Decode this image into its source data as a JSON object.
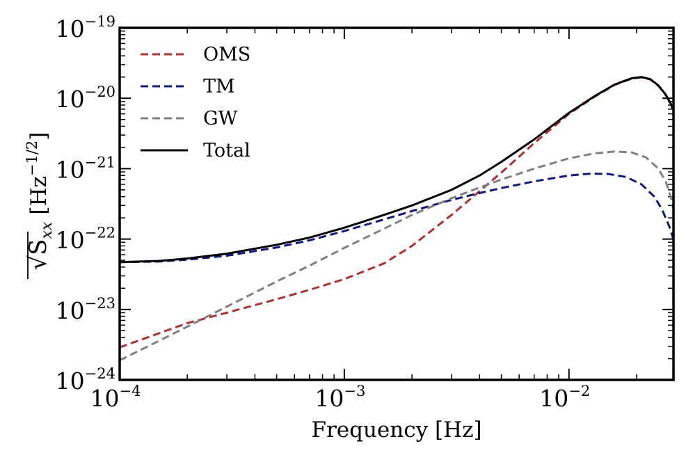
{
  "chart_data": {
    "type": "line",
    "xscale": "log",
    "yscale": "log",
    "xlim": [
      0.0001,
      0.0292
    ],
    "ylim": [
      1e-24,
      1e-19
    ],
    "xlabel": "Frequency [Hz]",
    "ylabel": {
      "base": "√S",
      "subscript": "xx",
      "unit_open": "[Hz",
      "unit_exponent": "−1/2",
      "unit_close": "]"
    },
    "x_ticks": [
      {
        "value": 0.0001,
        "base": "10",
        "exponent": "−4"
      },
      {
        "value": 0.001,
        "base": "10",
        "exponent": "−3"
      },
      {
        "value": 0.01,
        "base": "10",
        "exponent": "−2"
      }
    ],
    "y_ticks": [
      {
        "value": 1e-24,
        "base": "10",
        "exponent": "−24"
      },
      {
        "value": 1e-23,
        "base": "10",
        "exponent": "−23"
      },
      {
        "value": 1e-22,
        "base": "10",
        "exponent": "−22"
      },
      {
        "value": 1e-21,
        "base": "10",
        "exponent": "−21"
      },
      {
        "value": 1e-20,
        "base": "10",
        "exponent": "−20"
      },
      {
        "value": 1e-19,
        "base": "10",
        "exponent": "−19"
      }
    ],
    "legend_position": "top-left",
    "series": [
      {
        "name": "OMS",
        "color": "#b03030",
        "style": "dashed",
        "x": [
          0.0001,
          0.00015,
          0.0002,
          0.0003,
          0.0005,
          0.0007,
          0.001,
          0.0015,
          0.002,
          0.003,
          0.004,
          0.005,
          0.007,
          0.01,
          0.013,
          0.016,
          0.019,
          0.021,
          0.023,
          0.025,
          0.027,
          0.0285,
          0.029
        ],
        "y": [
          2.9e-24,
          4.6e-24,
          6.4e-24,
          9e-24,
          1.4e-23,
          1.9e-23,
          2.7e-23,
          4.5e-23,
          8e-23,
          2.2e-22,
          4.8e-22,
          8.8e-22,
          2.3e-21,
          6e-21,
          1.05e-20,
          1.55e-20,
          1.9e-20,
          1.98e-20,
          1.85e-20,
          1.5e-20,
          1.1e-20,
          8e-21,
          6.8e-21
        ]
      },
      {
        "name": "TM",
        "color": "#0d1a80",
        "style": "dashed",
        "x": [
          0.0001,
          0.00015,
          0.0002,
          0.0003,
          0.0005,
          0.0007,
          0.001,
          0.0015,
          0.002,
          0.003,
          0.004,
          0.005,
          0.007,
          0.01,
          0.0125,
          0.015,
          0.018,
          0.021,
          0.024,
          0.026,
          0.028,
          0.029
        ],
        "y": [
          4.7e-23,
          4.8e-23,
          5.1e-23,
          5.8e-23,
          7.6e-23,
          9.6e-23,
          1.3e-22,
          1.9e-22,
          2.5e-22,
          3.6e-22,
          4.5e-22,
          5.3e-22,
          6.6e-22,
          8e-22,
          8.5e-22,
          8.4e-22,
          7.6e-22,
          6e-22,
          4e-22,
          2.6e-22,
          1.5e-22,
          1.05e-22
        ]
      },
      {
        "name": "GW",
        "color": "#808080",
        "style": "dashed",
        "x": [
          0.0001,
          0.00015,
          0.0002,
          0.0003,
          0.0005,
          0.0007,
          0.001,
          0.0015,
          0.002,
          0.003,
          0.004,
          0.005,
          0.007,
          0.01,
          0.013,
          0.016,
          0.019,
          0.022,
          0.025,
          0.027,
          0.0285,
          0.029
        ],
        "y": [
          1.9e-24,
          3.6e-24,
          5.7e-24,
          1.1e-23,
          2.5e-23,
          4.2e-23,
          7.5e-23,
          1.4e-22,
          2.2e-22,
          3.8e-22,
          5.4e-22,
          7e-22,
          1e-21,
          1.4e-21,
          1.65e-21,
          1.75e-21,
          1.7e-21,
          1.45e-21,
          1e-21,
          6.5e-22,
          3.8e-22,
          2.8e-22
        ]
      },
      {
        "name": "Total",
        "color": "#000000",
        "style": "solid",
        "x": [
          0.0001,
          0.00015,
          0.0002,
          0.0003,
          0.0005,
          0.0007,
          0.001,
          0.0015,
          0.002,
          0.003,
          0.004,
          0.005,
          0.007,
          0.01,
          0.013,
          0.016,
          0.019,
          0.021,
          0.023,
          0.025,
          0.027,
          0.0285,
          0.029
        ],
        "y": [
          4.7e-23,
          4.9e-23,
          5.3e-23,
          6.2e-23,
          8.3e-23,
          1.05e-22,
          1.45e-22,
          2.2e-22,
          3e-22,
          5e-22,
          8e-22,
          1.25e-21,
          2.6e-21,
          6.2e-21,
          1.07e-20,
          1.57e-20,
          1.92e-20,
          2e-20,
          1.87e-20,
          1.52e-20,
          1.12e-20,
          8.2e-21,
          7e-21
        ]
      }
    ]
  }
}
